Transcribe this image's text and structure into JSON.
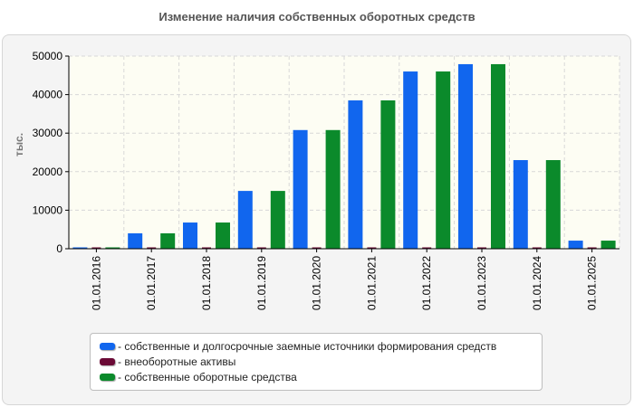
{
  "title": "Изменение наличия собственных оборотных средств",
  "chart_data": {
    "type": "bar",
    "title": "Изменение наличия собственных оборотных средств",
    "ylabel": "тыс.",
    "xlabel": "",
    "ylim": [
      0,
      50000
    ],
    "yticks": [
      0,
      10000,
      20000,
      30000,
      40000,
      50000
    ],
    "grid": true,
    "legend_position": "bottom",
    "categories": [
      "01.01.2016",
      "01.01.2017",
      "01.01.2018",
      "01.01.2019",
      "01.01.2020",
      "01.01.2021",
      "01.01.2022",
      "01.01.2023",
      "01.01.2024",
      "01.01.2025"
    ],
    "series": [
      {
        "name": "собственные и долгосрочные заемные источники формирования средств",
        "color": "#1166ee",
        "values": [
          300,
          4000,
          6800,
          15000,
          30800,
          38500,
          46000,
          47900,
          23000,
          2100
        ]
      },
      {
        "name": "внеоборотные активы",
        "color": "#6b0a36",
        "values": [
          150,
          150,
          150,
          150,
          150,
          150,
          150,
          150,
          150,
          150
        ]
      },
      {
        "name": "собственные оборотные средства",
        "color": "#0b8a2b",
        "values": [
          200,
          4000,
          6800,
          15000,
          30800,
          38500,
          46000,
          47900,
          23000,
          2100
        ]
      }
    ]
  }
}
